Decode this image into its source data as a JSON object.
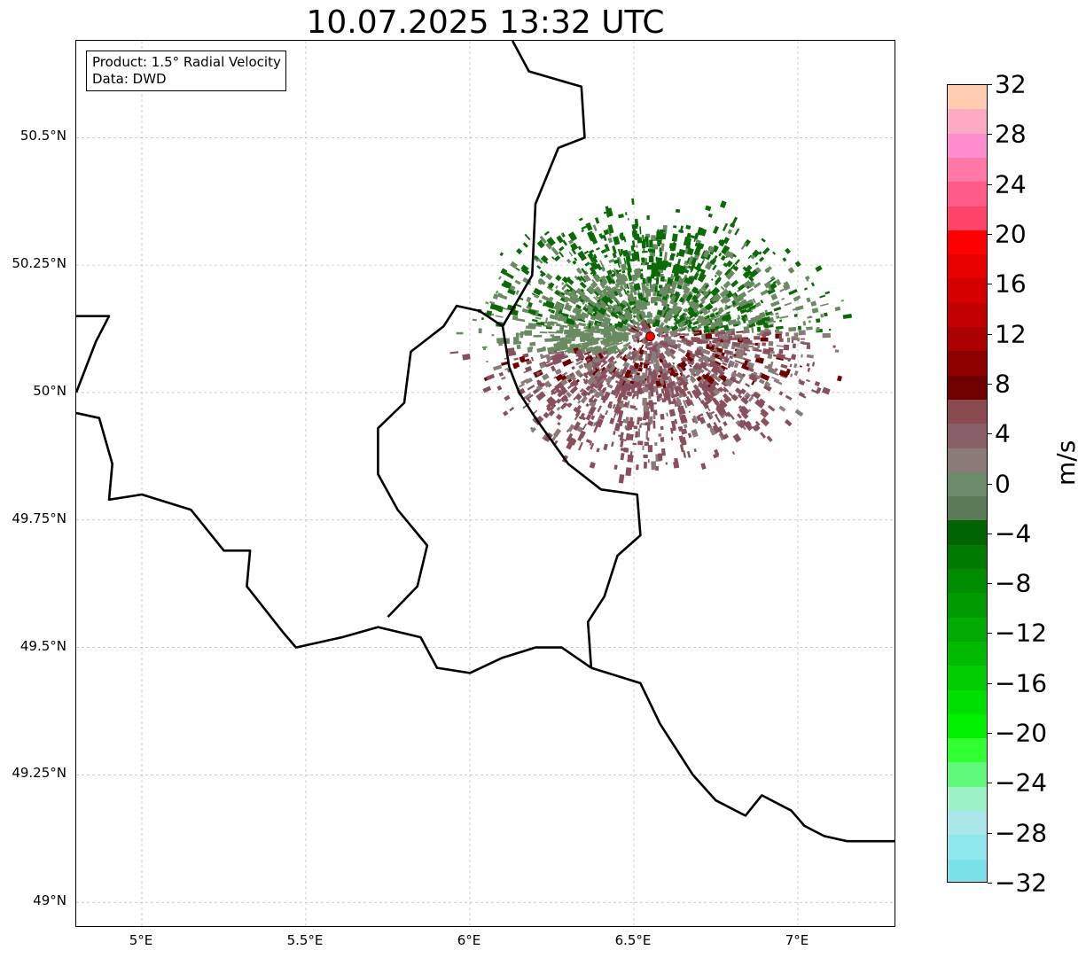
{
  "title": "10.07.2025 13:32 UTC",
  "infobox": {
    "product_line": "Product: 1.5° Radial Velocity",
    "source_line": "Data: DWD"
  },
  "map": {
    "lon_range": [
      4.8,
      7.3
    ],
    "lat_range": [
      48.95,
      50.69
    ],
    "gridlines": true,
    "lat_ticks": [
      {
        "value": 49.0,
        "label": "49°N"
      },
      {
        "value": 49.25,
        "label": "49.25°N"
      },
      {
        "value": 49.5,
        "label": "49.5°N"
      },
      {
        "value": 49.75,
        "label": "49.75°N"
      },
      {
        "value": 50.0,
        "label": "50°N"
      },
      {
        "value": 50.25,
        "label": "50.25°N"
      },
      {
        "value": 50.5,
        "label": "50.5°N"
      }
    ],
    "lon_ticks": [
      {
        "value": 5.0,
        "label": "5°E"
      },
      {
        "value": 5.5,
        "label": "5.5°E"
      },
      {
        "value": 6.0,
        "label": "6°E"
      },
      {
        "value": 6.5,
        "label": "6.5°E"
      },
      {
        "value": 7.0,
        "label": "7°E"
      }
    ],
    "radar_site": {
      "lon": 6.55,
      "lat": 50.11,
      "color": "#ff0000"
    },
    "radar_range_deg": 0.55,
    "colors": {
      "border": "#000000",
      "admin_border": "#9a9a9a",
      "inbound_strong": "#0a6a06",
      "inbound_weak": "#6a8a62",
      "near_zero": "#8a7a78",
      "outbound_weak": "#88505c",
      "outbound_strong": "#6e0000"
    }
  },
  "colorbar": {
    "unit": "m/s",
    "min": -32,
    "max": 32,
    "tick_labels": [
      "32",
      "28",
      "24",
      "20",
      "16",
      "12",
      "8",
      "4",
      "0",
      "−4",
      "−8",
      "−12",
      "−16",
      "−20",
      "−24",
      "−28",
      "−32"
    ],
    "tick_values": [
      32,
      28,
      24,
      20,
      16,
      12,
      8,
      4,
      0,
      -4,
      -8,
      -12,
      -16,
      -20,
      -24,
      -28,
      -32
    ],
    "colors_top_to_bottom": [
      "#ffcdb0",
      "#ffaac4",
      "#ff8ccc",
      "#ff78a8",
      "#ff5a88",
      "#ff4468",
      "#ff0000",
      "#e60000",
      "#d40000",
      "#c20000",
      "#aa0000",
      "#8c0000",
      "#6e0000",
      "#8a4a50",
      "#886068",
      "#8a7a78",
      "#6a8a6a",
      "#5a7a58",
      "#006400",
      "#007a00",
      "#008c00",
      "#009a00",
      "#00aa00",
      "#00ba00",
      "#00cc00",
      "#00e000",
      "#00f000",
      "#30ff30",
      "#60f878",
      "#9cf2c6",
      "#aae6ea",
      "#8ee8ec",
      "#7ae2e8"
    ]
  }
}
